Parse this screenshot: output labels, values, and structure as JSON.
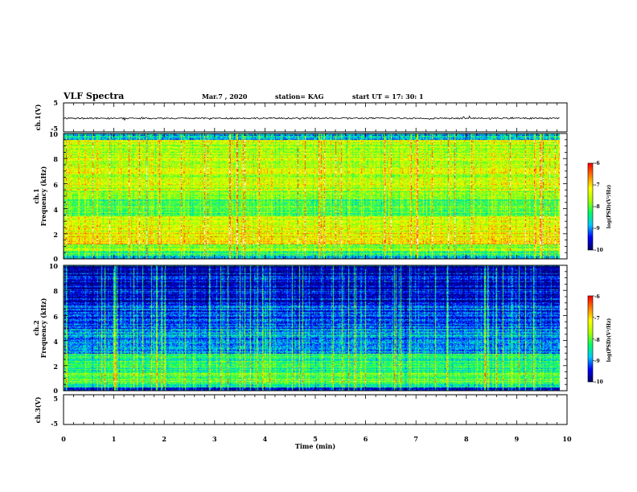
{
  "header": {
    "title": "VLF Spectra",
    "date": "Mar.7 , 2020",
    "station": "station= KAG",
    "start": "start  UT =   17: 30: 1"
  },
  "chart_data": [
    {
      "type": "line",
      "panel": "ch1-waveform",
      "ylabel": "ch.1(V)",
      "ylim": [
        -5,
        5
      ],
      "yticks": [
        "5",
        "-5"
      ],
      "xlim": [
        0,
        10
      ],
      "series": [
        {
          "values": [
            -0.3,
            -0.3
          ]
        }
      ],
      "grid": false
    },
    {
      "type": "heatmap",
      "panel": "ch1-spectrogram",
      "ylabel": "Frequency (kHz)",
      "ylabel_ch": "ch.1",
      "ylim": [
        0,
        10
      ],
      "yticks": [
        "0",
        "2",
        "4",
        "6",
        "8",
        "10"
      ],
      "xlim": [
        0,
        9.85
      ],
      "band_levels": [
        {
          "f": [
            0.0,
            0.3
          ],
          "log_psd": -9.0
        },
        {
          "f": [
            0.3,
            0.6
          ],
          "log_psd": -8.2
        },
        {
          "f": [
            0.6,
            1.2
          ],
          "log_psd": -7.8
        },
        {
          "f": [
            1.2,
            2.2
          ],
          "log_psd": -7.1
        },
        {
          "f": [
            2.2,
            3.4
          ],
          "log_psd": -7.4
        },
        {
          "f": [
            3.4,
            5.5
          ],
          "log_psd": -8.0
        },
        {
          "f": [
            5.5,
            7.2
          ],
          "log_psd": -7.5
        },
        {
          "f": [
            7.2,
            9.5
          ],
          "log_psd": -7.6
        },
        {
          "f": [
            9.5,
            10.0
          ],
          "log_psd": -8.8
        }
      ],
      "colorbar": {
        "label": "log(PSD)(V²/Hz)",
        "range": [
          -10,
          -6
        ],
        "ticks": [
          "-6",
          "-7",
          "-8",
          "-9",
          "-10"
        ]
      }
    },
    {
      "type": "heatmap",
      "panel": "ch2-spectrogram",
      "ylabel": "Frequency (kHz)",
      "ylabel_ch": "ch.2",
      "ylim": [
        0,
        10
      ],
      "yticks": [
        "0",
        "2",
        "4",
        "6",
        "8",
        "10"
      ],
      "xlim": [
        0,
        9.85
      ],
      "band_levels": [
        {
          "f": [
            0.0,
            0.3
          ],
          "log_psd": -9.4
        },
        {
          "f": [
            0.3,
            0.6
          ],
          "log_psd": -8.4
        },
        {
          "f": [
            0.6,
            1.6
          ],
          "log_psd": -8.0
        },
        {
          "f": [
            1.6,
            3.0
          ],
          "log_psd": -8.3
        },
        {
          "f": [
            3.0,
            5.0
          ],
          "log_psd": -8.9
        },
        {
          "f": [
            5.0,
            7.0
          ],
          "log_psd": -9.3
        },
        {
          "f": [
            7.0,
            9.4
          ],
          "log_psd": -9.6
        },
        {
          "f": [
            9.4,
            10.0
          ],
          "log_psd": -9.9
        }
      ],
      "colorbar": {
        "label": "log(PSD)(V²/Hz)",
        "range": [
          -10,
          -6
        ],
        "ticks": [
          "-6",
          "-7",
          "-8",
          "-9",
          "-10"
        ]
      }
    },
    {
      "type": "line",
      "panel": "ch3-waveform",
      "ylabel": "ch.3(V)",
      "ylim": [
        -5,
        5
      ],
      "yticks": [
        "5",
        "-5"
      ],
      "xlim": [
        0,
        10
      ],
      "series": [],
      "grid": false
    }
  ],
  "xaxis": {
    "label": "Time (min)",
    "ticks": [
      "0",
      "1",
      "2",
      "3",
      "4",
      "5",
      "6",
      "7",
      "8",
      "9",
      "10"
    ]
  },
  "colors": {
    "colormap": [
      "#00006a",
      "#0000ff",
      "#00c8ff",
      "#00ff64",
      "#aaff00",
      "#ffff00",
      "#ff8000",
      "#ff0000",
      "#ffffff"
    ]
  }
}
